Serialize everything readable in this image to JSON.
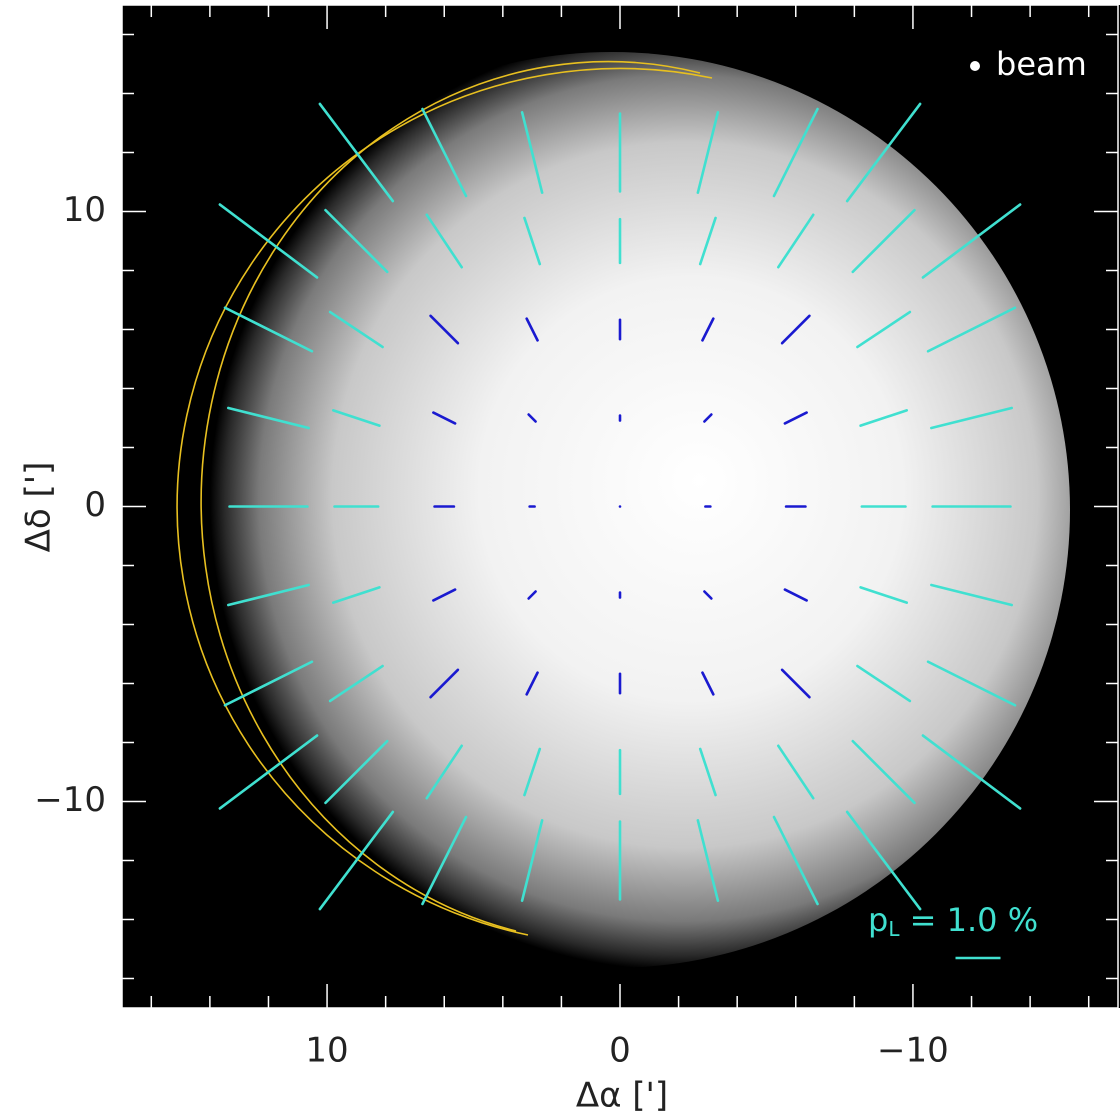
{
  "chart_data": {
    "type": "vector",
    "x_label": "Δα [']",
    "y_label": "Δδ [']",
    "xlim": [
      17,
      -17
    ],
    "ylim": [
      -17,
      17
    ],
    "xticks": [
      10,
      0,
      {
        "value": -10,
        "label": "−10"
      }
    ],
    "yticks": [
      10,
      0,
      {
        "value": -10,
        "label": "−10"
      }
    ],
    "xminorticks": [
      16,
      14,
      12,
      8,
      6,
      4,
      2,
      -2,
      -4,
      -6,
      -8,
      -12,
      -14,
      -16
    ],
    "yminorticks": [
      16,
      14,
      12,
      8,
      6,
      4,
      2,
      -2,
      -4,
      -6,
      -8,
      -12,
      -14,
      -16
    ],
    "beam_label": "beam",
    "scale_bar": {
      "label_main": "p",
      "label_sub": "L",
      "label_rest": " = 1.0 %",
      "value": 1.0,
      "color": "#40e0d0"
    },
    "series": [
      {
        "color": "#1a1ad0",
        "x": [
          -6,
          -3,
          0,
          3,
          6,
          -6,
          -3,
          0,
          3,
          6,
          -6,
          -3,
          0,
          3,
          6,
          -6,
          -3,
          0,
          3,
          6,
          -6,
          -3,
          0,
          3,
          6
        ],
        "y": [
          6,
          6,
          6,
          6,
          6,
          3,
          3,
          3,
          3,
          3,
          0,
          0,
          0,
          0,
          0,
          -3,
          -3,
          -3,
          -3,
          -3,
          -6,
          -6,
          -6,
          -6,
          -6
        ],
        "p": [
          0.86,
          0.54,
          0.43,
          0.54,
          0.86,
          0.54,
          0.22,
          0.11,
          0.22,
          0.54,
          0.43,
          0.11,
          0,
          0.11,
          0.43,
          0.54,
          0.22,
          0.11,
          0.22,
          0.54,
          0.86,
          0.54,
          0.43,
          0.54,
          0.86
        ],
        "angle": [
          -45,
          -63.4,
          90,
          63.4,
          45,
          -26.6,
          -45,
          90,
          45,
          26.6,
          0,
          0,
          0,
          0,
          0,
          26.6,
          45,
          90,
          -45,
          -26.6,
          45,
          63.4,
          90,
          -63.4,
          -45
        ]
      },
      {
        "color": "#40e0d0",
        "x": [
          -9,
          -6,
          -3,
          0,
          3,
          6,
          9,
          -12,
          -9,
          -6,
          -3,
          0,
          3,
          6,
          9,
          12,
          -12,
          -9,
          9,
          12,
          -12,
          -9,
          9,
          12,
          -12,
          -9,
          9,
          12,
          -12,
          -9,
          9,
          12,
          -12,
          -9,
          9,
          12,
          -12,
          -9,
          -6,
          -3,
          0,
          3,
          6,
          9,
          12,
          -9,
          -6,
          -3,
          0,
          3,
          6,
          9
        ],
        "y": [
          12,
          12,
          12,
          12,
          12,
          12,
          12,
          9,
          9,
          9,
          9,
          9,
          9,
          9,
          9,
          9,
          6,
          6,
          6,
          6,
          3,
          3,
          3,
          3,
          0,
          0,
          0,
          0,
          -3,
          -3,
          -3,
          -3,
          -6,
          -6,
          -6,
          -6,
          -9,
          -9,
          -9,
          -9,
          -9,
          -9,
          -9,
          -9,
          -9,
          -12,
          -12,
          -12,
          -12,
          -12,
          -12,
          -12
        ],
        "p": [
          2.7,
          2.16,
          1.84,
          1.73,
          1.84,
          2.16,
          2.7,
          2.7,
          1.94,
          1.4,
          1.08,
          0.97,
          1.08,
          1.4,
          1.94,
          2.7,
          2.16,
          1.4,
          1.4,
          2.16,
          1.84,
          1.08,
          1.08,
          1.84,
          1.73,
          0.97,
          0.97,
          1.73,
          1.84,
          1.08,
          1.08,
          1.84,
          2.16,
          1.4,
          1.4,
          2.16,
          2.7,
          1.94,
          1.4,
          1.08,
          0.97,
          1.08,
          1.4,
          1.94,
          2.7,
          2.7,
          2.16,
          1.84,
          1.73,
          1.84,
          2.16,
          2.7
        ],
        "angle": [
          -53.1,
          -63.4,
          -76,
          90,
          76,
          63.4,
          53.1,
          -36.9,
          -45,
          -56.3,
          -71.6,
          90,
          71.6,
          56.3,
          45,
          36.9,
          -26.6,
          -33.7,
          33.7,
          26.6,
          -14,
          -18.4,
          18.4,
          14,
          0,
          0,
          0,
          0,
          14,
          18.4,
          -18.4,
          -14,
          26.6,
          33.7,
          -33.7,
          -26.6,
          36.9,
          45,
          56.3,
          71.6,
          90,
          -71.6,
          -56.3,
          -45,
          -36.9,
          53.1,
          63.4,
          76,
          90,
          -76,
          -63.4,
          -53.1
        ]
      }
    ]
  }
}
